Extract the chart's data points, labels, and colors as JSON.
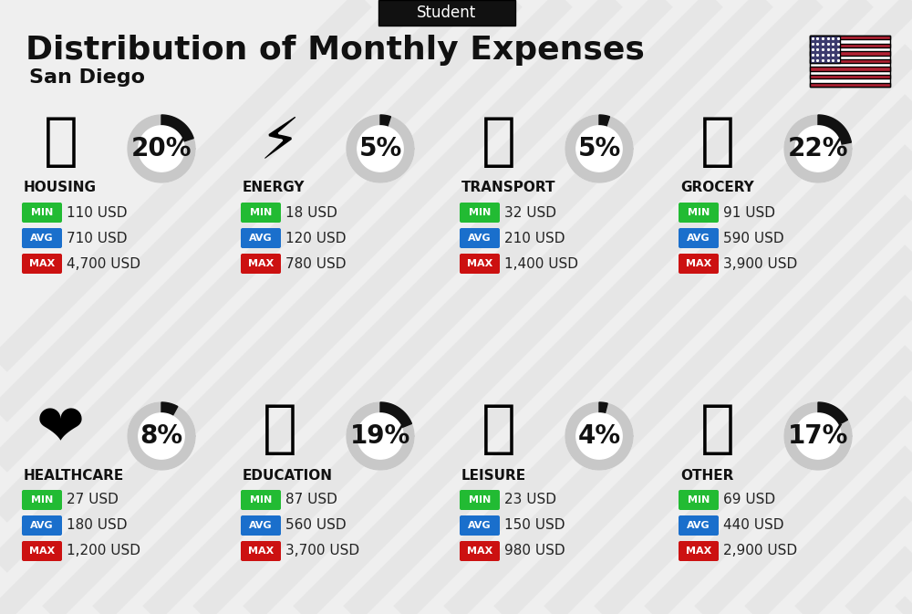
{
  "title": "Distribution of Monthly Expenses",
  "subtitle": "San Diego",
  "header_label": "Student",
  "background_color": "#efefef",
  "categories": [
    {
      "name": "HOUSING",
      "percent": 20,
      "min_val": "110 USD",
      "avg_val": "710 USD",
      "max_val": "4,700 USD",
      "row": 0,
      "col": 0
    },
    {
      "name": "ENERGY",
      "percent": 5,
      "min_val": "18 USD",
      "avg_val": "120 USD",
      "max_val": "780 USD",
      "row": 0,
      "col": 1
    },
    {
      "name": "TRANSPORT",
      "percent": 5,
      "min_val": "32 USD",
      "avg_val": "210 USD",
      "max_val": "1,400 USD",
      "row": 0,
      "col": 2
    },
    {
      "name": "GROCERY",
      "percent": 22,
      "min_val": "91 USD",
      "avg_val": "590 USD",
      "max_val": "3,900 USD",
      "row": 0,
      "col": 3
    },
    {
      "name": "HEALTHCARE",
      "percent": 8,
      "min_val": "27 USD",
      "avg_val": "180 USD",
      "max_val": "1,200 USD",
      "row": 1,
      "col": 0
    },
    {
      "name": "EDUCATION",
      "percent": 19,
      "min_val": "87 USD",
      "avg_val": "560 USD",
      "max_val": "3,700 USD",
      "row": 1,
      "col": 1
    },
    {
      "name": "LEISURE",
      "percent": 4,
      "min_val": "23 USD",
      "avg_val": "150 USD",
      "max_val": "980 USD",
      "row": 1,
      "col": 2
    },
    {
      "name": "OTHER",
      "percent": 17,
      "min_val": "69 USD",
      "avg_val": "440 USD",
      "max_val": "2,900 USD",
      "row": 1,
      "col": 3
    }
  ],
  "min_color": "#22bb33",
  "avg_color": "#1a6fcc",
  "max_color": "#cc1111",
  "stripe_color": "#e0e0e0",
  "circle_gray": "#c8c8c8",
  "circle_dark": "#111111",
  "title_fontsize": 26,
  "subtitle_fontsize": 16,
  "header_fontsize": 12,
  "category_fontsize": 11,
  "value_fontsize": 11,
  "percent_fontsize": 20,
  "badge_fontsize": 8
}
